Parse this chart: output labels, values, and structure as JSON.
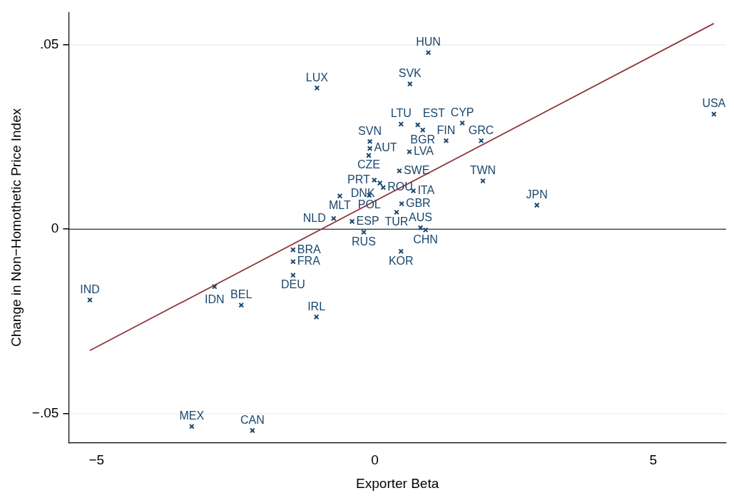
{
  "chart_data": {
    "type": "scatter",
    "xlabel": "Exporter Beta",
    "ylabel": "Change in Non−Homothetic Price Index",
    "xlim": [
      -5.5,
      6.31
    ],
    "ylim": [
      -0.0579,
      0.0588
    ],
    "xticks": [
      {
        "value": -5,
        "label": "−5"
      },
      0,
      5
    ],
    "yticks": [
      {
        "value": -0.05,
        "label": "−.05"
      },
      0,
      {
        "value": 0.05,
        "label": ".05"
      }
    ],
    "grid": "y",
    "legend": false,
    "ref_lines": [
      {
        "axis": "y",
        "value": 0,
        "color": "#000000"
      }
    ],
    "series": [
      {
        "type": "scatter",
        "color": "#1a476f",
        "marker": "cross",
        "x": [
          0.96,
          0.63,
          -1.04,
          6.09,
          0.47,
          0.77,
          0.86,
          1.57,
          1.28,
          1.91,
          -0.09,
          -0.09,
          -0.11,
          0.62,
          0.44,
          1.94,
          -0.01,
          0.09,
          0.15,
          -0.63,
          -0.1,
          0.69,
          0.48,
          0.39,
          -0.74,
          -0.41,
          -0.2,
          0.82,
          0.91,
          0.47,
          -1.47,
          -1.47,
          -1.47,
          -2.88,
          -2.4,
          -1.05,
          -5.12,
          -3.29,
          -2.2,
          2.91
        ],
        "values": [
          0.0479,
          0.0394,
          0.0383,
          0.0312,
          0.0285,
          0.0283,
          0.0269,
          0.0288,
          0.024,
          0.024,
          0.0238,
          0.0219,
          0.02,
          0.021,
          0.0158,
          0.0131,
          0.0133,
          0.0125,
          0.0113,
          0.009,
          0.0092,
          0.0104,
          0.0069,
          0.0046,
          0.0029,
          0.0021,
          -0.0008,
          0.0004,
          -0.0002,
          -0.006,
          -0.0056,
          -0.0088,
          -0.0125,
          -0.0156,
          -0.0206,
          -0.0238,
          -0.0192,
          -0.0535,
          -0.0546,
          0.0065
        ],
        "value_labels": [
          "HUN",
          "SVK",
          "LUX",
          "USA",
          "LTU",
          "EST",
          "BGR",
          "CYP",
          "FIN",
          "GRC",
          "SVN",
          "AUT",
          "CZE",
          "LVA",
          "SWE",
          "TWN",
          "PRT",
          "DNK",
          "ROU",
          "MLT",
          "POL",
          "ITA",
          "GBR",
          "TUR",
          "NLD",
          "ESP",
          "RUS",
          "AUS",
          "CHN",
          "KOR",
          "BRA",
          "FRA",
          "DEU",
          "IDN",
          "BEL",
          "IRL",
          "IND",
          "MEX",
          "CAN",
          "JPN"
        ]
      },
      {
        "type": "line",
        "color": "#90353b",
        "x": [
          -5.12,
          6.09
        ],
        "values": [
          -0.0329,
          0.0558
        ]
      }
    ]
  }
}
